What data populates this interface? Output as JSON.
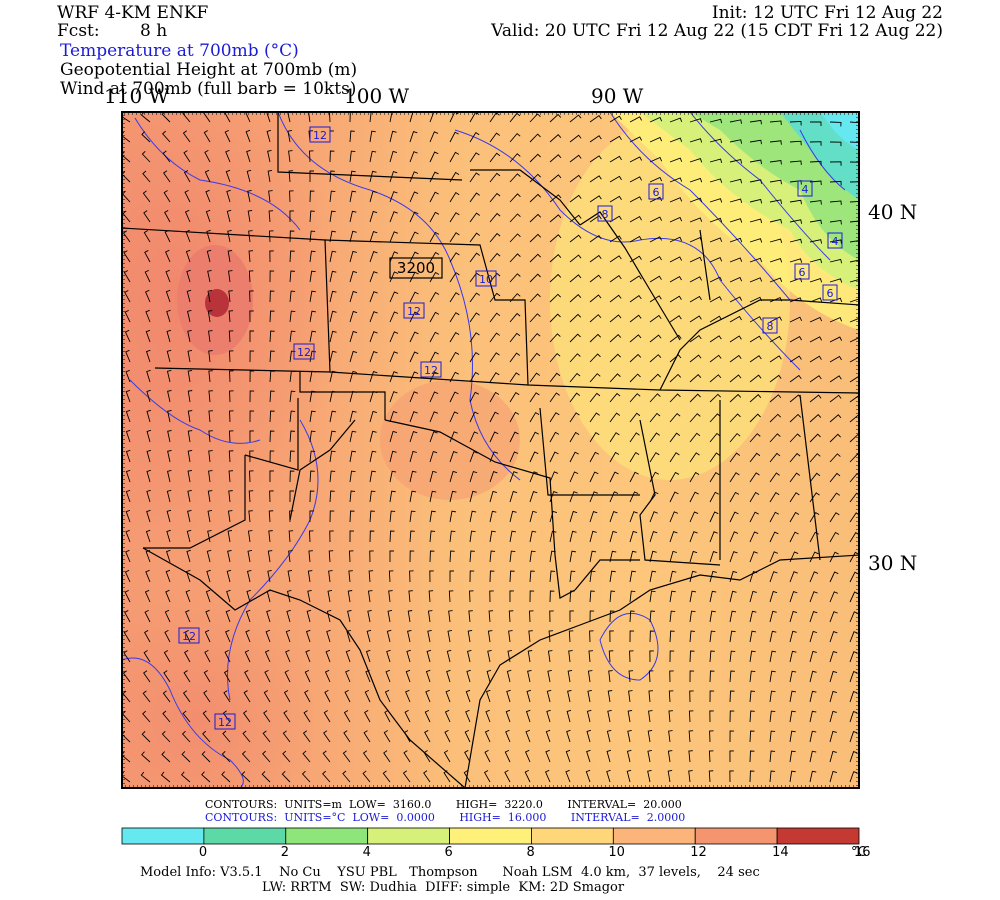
{
  "header": {
    "model": "WRF 4-KM ENKF",
    "fcst_label": "Fcst:",
    "fcst_value": "8 h",
    "init": "Init: 12 UTC Fri 12 Aug 22",
    "valid": "Valid: 20 UTC Fri 12 Aug 22 (15 CDT Fri 12 Aug 22)",
    "field1": "Temperature at 700mb (°C)",
    "field2": "Geopotential Height at 700mb (m)",
    "field3": "Wind at 700mb (full barb = 10kts)"
  },
  "axes": {
    "lon": [
      "110 W",
      "100 W",
      "90 W"
    ],
    "lat": [
      "40 N",
      "30 N"
    ]
  },
  "map_labels": {
    "height_contours": [
      "3200"
    ],
    "temp_contours": [
      "12",
      "12",
      "12",
      "12",
      "12",
      "12",
      "10",
      "8",
      "8",
      "6",
      "6",
      "6",
      "4",
      "4",
      "12",
      "12"
    ]
  },
  "contour_info": {
    "row1": {
      "label": "CONTOURS:",
      "units": "UNITS=m",
      "low_label": "LOW=",
      "low": "3160.0",
      "high_label": "HIGH=",
      "high": "3220.0",
      "int_label": "INTERVAL=",
      "interval": "20.000"
    },
    "row2": {
      "label": "CONTOURS:",
      "units": "UNITS=°C",
      "low_label": "LOW=",
      "low": "0.0000",
      "high_label": "HIGH=",
      "high": "16.000",
      "int_label": "INTERVAL=",
      "interval": "2.0000"
    }
  },
  "colorbar": {
    "colors": [
      "#66e8f0",
      "#5cd9a6",
      "#8ee67a",
      "#d6f07a",
      "#fff07a",
      "#ffd67a",
      "#fbb57a",
      "#f5956f",
      "#c43a33"
    ],
    "ticks": [
      "0",
      "2",
      "4",
      "6",
      "8",
      "10",
      "12",
      "14",
      "16"
    ],
    "unit": "°C"
  },
  "model_info": {
    "line1": "Model Info: V3.5.1    No Cu    YSU PBL   Thompson      Noah LSM  4.0 km,  37 levels,    24 sec",
    "line2": "LW: RRTM  SW: Dudhia  DIFF: simple  KM: 2D Smagor"
  }
}
